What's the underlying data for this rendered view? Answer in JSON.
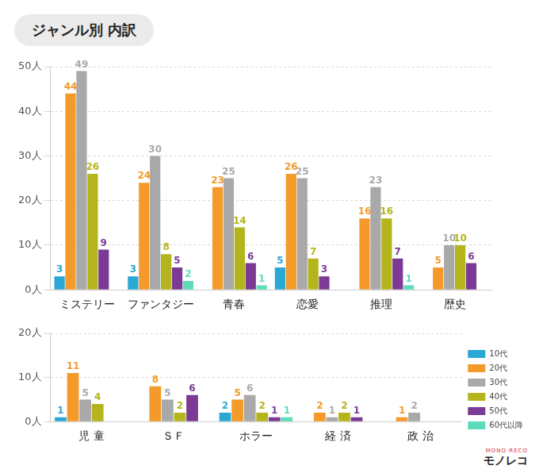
{
  "title": "ジャンル別 内訳",
  "logo": {
    "text": "モノレコ",
    "subtext": "MONO RECO"
  },
  "chart_data": [
    {
      "type": "bar",
      "categories": [
        "ミステリー",
        "ファンタジー",
        "青春",
        "恋愛",
        "推理",
        "歴史"
      ],
      "ylim": [
        0,
        50
      ],
      "yticks": [
        {
          "value": 0,
          "label": "0人"
        },
        {
          "value": 10,
          "label": "10人"
        },
        {
          "value": 20,
          "label": "20人"
        },
        {
          "value": 30,
          "label": "30人"
        },
        {
          "value": 40,
          "label": "40人"
        },
        {
          "value": 50,
          "label": "50人"
        }
      ],
      "grid": true,
      "data_labels": true,
      "series": [
        {
          "name": "10代",
          "color": "#2aa7d5",
          "values": [
            3,
            3,
            null,
            5,
            null,
            null
          ]
        },
        {
          "name": "20代",
          "color": "#f39a2b",
          "values": [
            44,
            24,
            23,
            26,
            16,
            5
          ]
        },
        {
          "name": "30代",
          "color": "#a9a9a9",
          "values": [
            49,
            30,
            25,
            25,
            23,
            10
          ]
        },
        {
          "name": "40代",
          "color": "#b4b51c",
          "values": [
            26,
            8,
            14,
            7,
            16,
            10
          ]
        },
        {
          "name": "50代",
          "color": "#7b3b95",
          "values": [
            9,
            5,
            6,
            3,
            7,
            6
          ]
        },
        {
          "name": "60代以降",
          "color": "#5ddcbc",
          "values": [
            null,
            2,
            1,
            null,
            1,
            null
          ]
        }
      ]
    },
    {
      "type": "bar",
      "categories": [
        "児 童",
        "ＳＦ",
        "ホラー",
        "経 済",
        "政 治"
      ],
      "ylim": [
        0,
        20
      ],
      "yticks": [
        {
          "value": 0,
          "label": "0人"
        },
        {
          "value": 10,
          "label": "10人"
        },
        {
          "value": 20,
          "label": "20人"
        }
      ],
      "grid": true,
      "data_labels": true,
      "legend": "right",
      "series": [
        {
          "name": "10代",
          "color": "#2aa7d5",
          "values": [
            1,
            null,
            2,
            null,
            null
          ]
        },
        {
          "name": "20代",
          "color": "#f39a2b",
          "values": [
            11,
            8,
            5,
            2,
            1
          ]
        },
        {
          "name": "30代",
          "color": "#a9a9a9",
          "values": [
            5,
            5,
            6,
            1,
            2
          ]
        },
        {
          "name": "40代",
          "color": "#b4b51c",
          "values": [
            4,
            2,
            2,
            2,
            null
          ]
        },
        {
          "name": "50代",
          "color": "#7b3b95",
          "values": [
            null,
            6,
            1,
            1,
            null
          ]
        },
        {
          "name": "60代以降",
          "color": "#5ddcbc",
          "values": [
            null,
            null,
            1,
            null,
            null
          ]
        }
      ]
    }
  ]
}
